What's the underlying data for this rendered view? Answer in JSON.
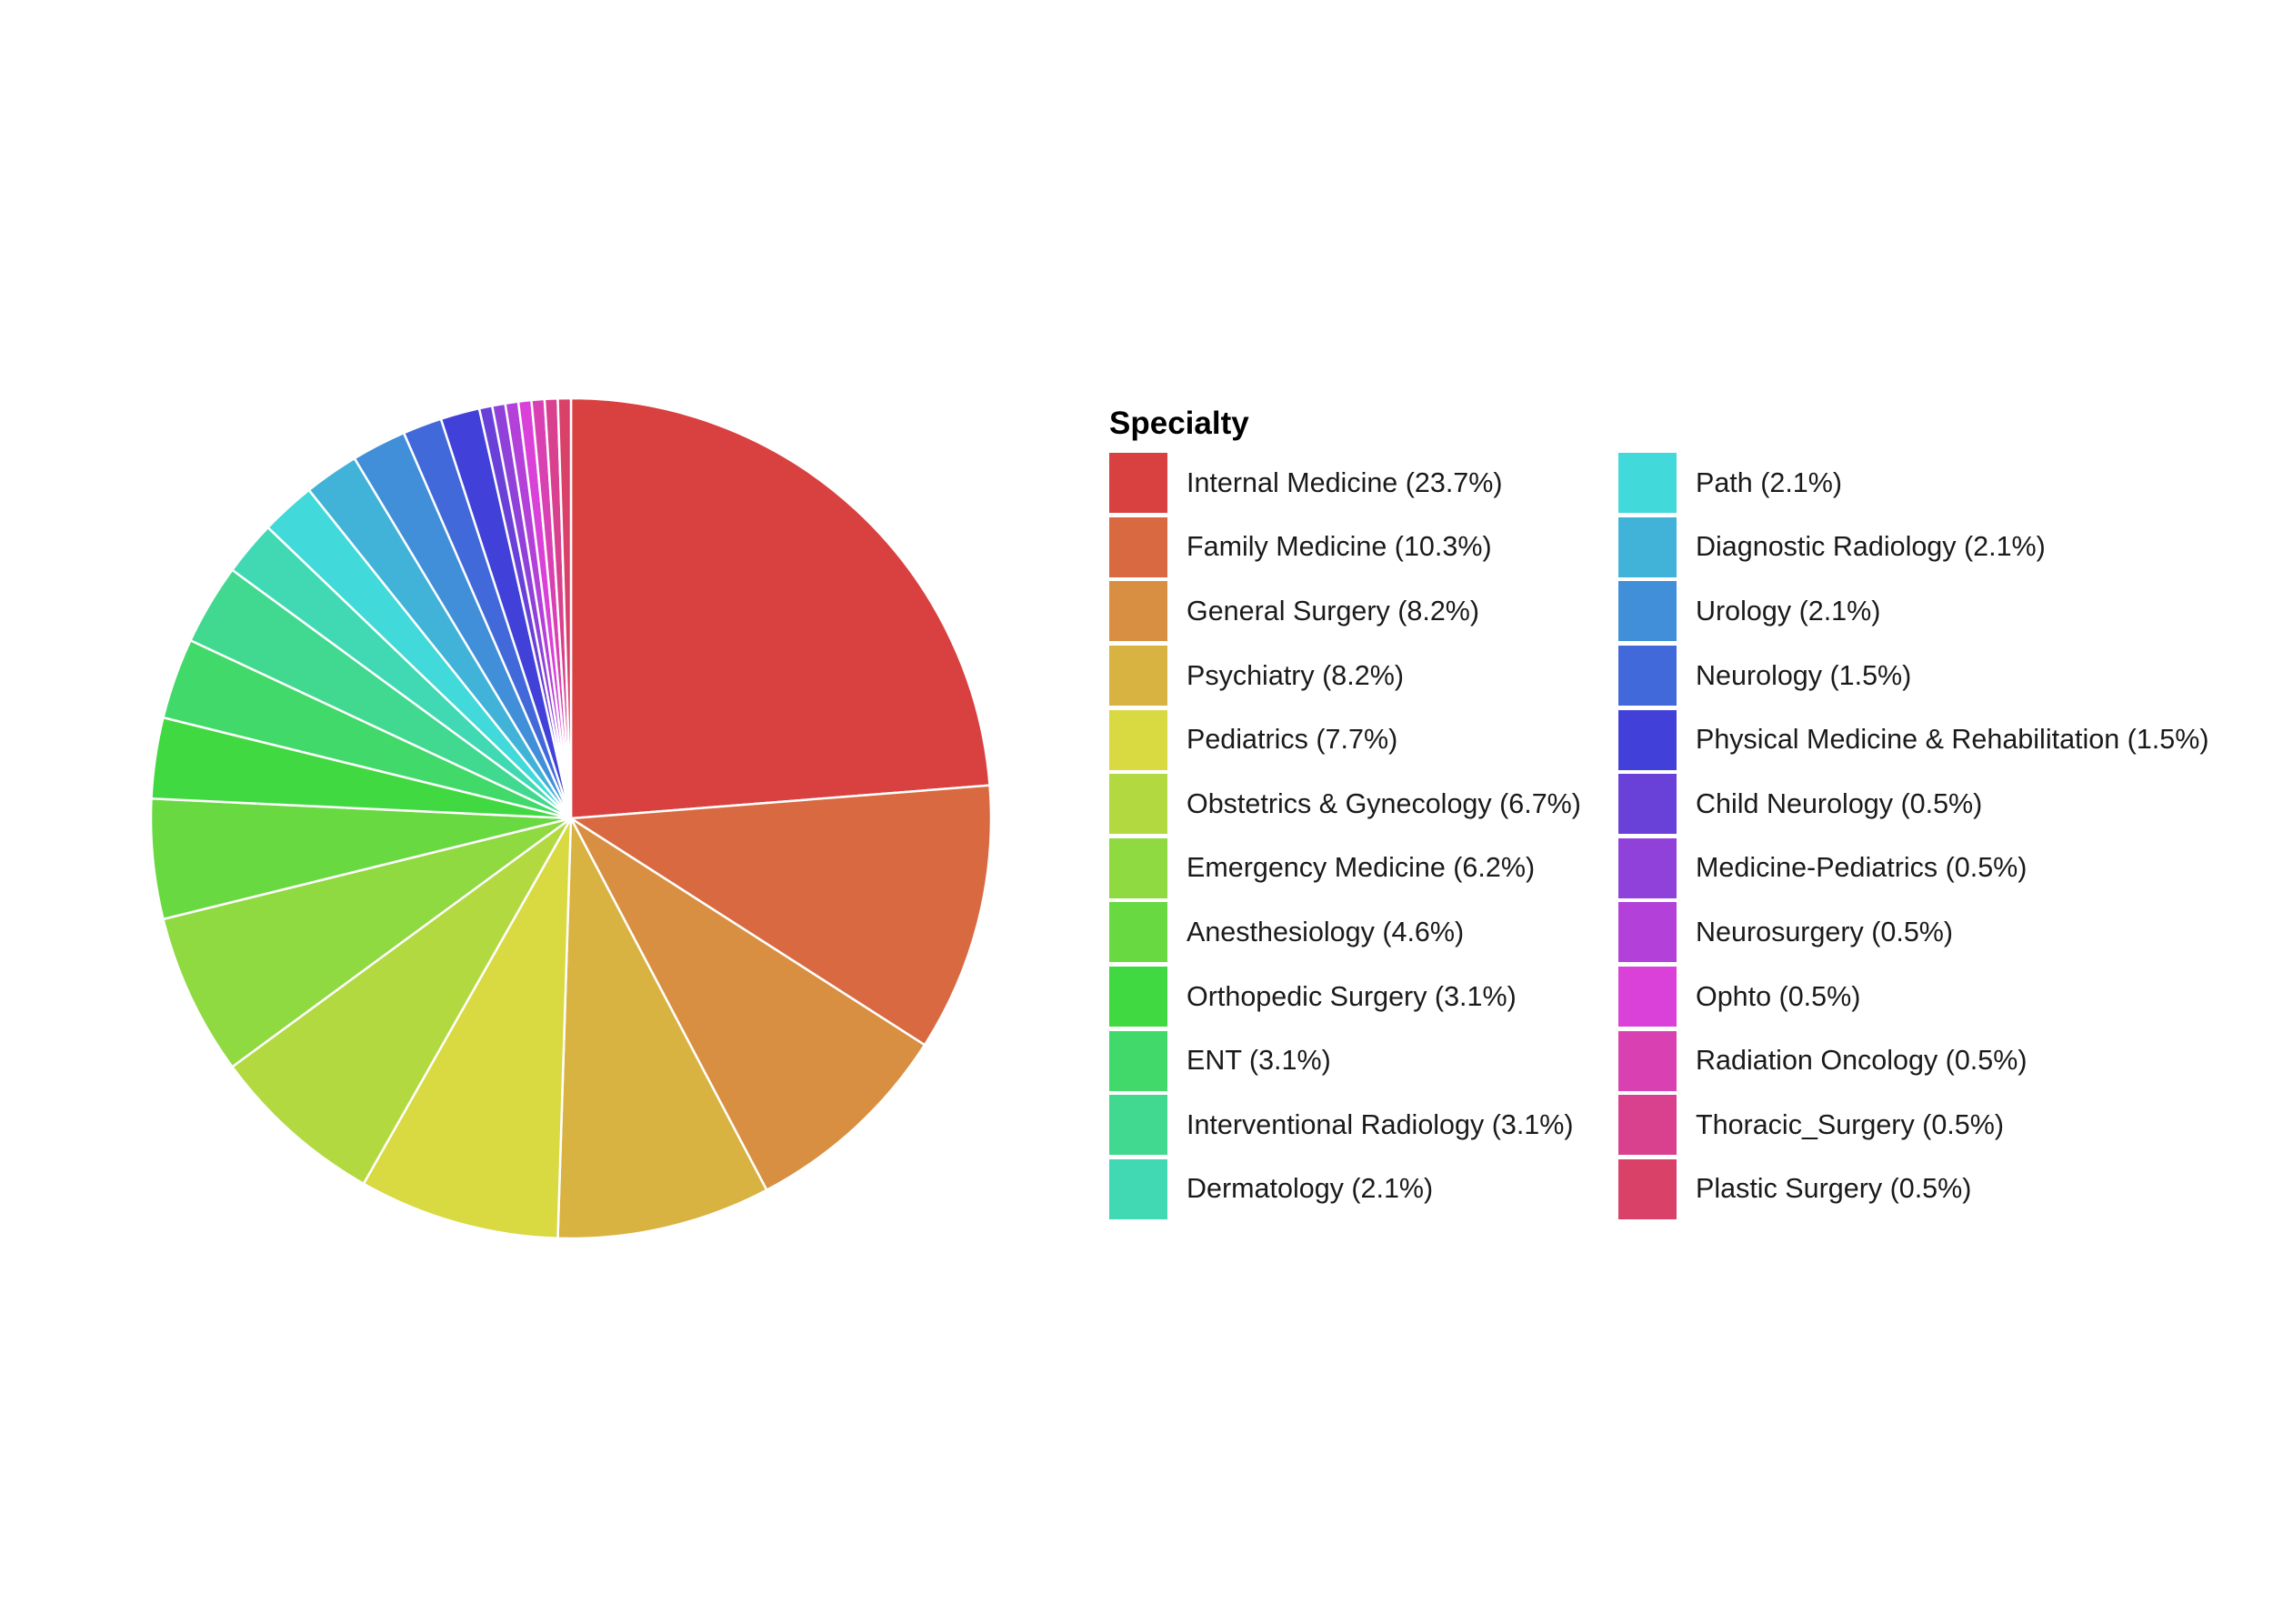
{
  "chart_data": {
    "type": "pie",
    "legend": {
      "title": "Specialty",
      "placement": "right",
      "columns": 2
    },
    "slices": [
      {
        "label": "Internal Medicine (23.7%)",
        "value": 23.7,
        "color": "#D94141"
      },
      {
        "label": "Family Medicine (10.3%)",
        "value": 10.3,
        "color": "#D96941"
      },
      {
        "label": "General Surgery (8.2%)",
        "value": 8.2,
        "color": "#D98F41"
      },
      {
        "label": "Psychiatry (8.2%)",
        "value": 8.2,
        "color": "#D9B341"
      },
      {
        "label": "Pediatrics (7.7%)",
        "value": 7.7,
        "color": "#D9D941"
      },
      {
        "label": "Obstetrics & Gynecology (6.7%)",
        "value": 6.7,
        "color": "#B3D941"
      },
      {
        "label": "Emergency Medicine (6.2%)",
        "value": 6.2,
        "color": "#8FD941"
      },
      {
        "label": "Anesthesiology (4.6%)",
        "value": 4.6,
        "color": "#69D941"
      },
      {
        "label": "Orthopedic Surgery (3.1%)",
        "value": 3.1,
        "color": "#41D941"
      },
      {
        "label": "ENT (3.1%)",
        "value": 3.1,
        "color": "#41D969"
      },
      {
        "label": "Interventional Radiology (3.1%)",
        "value": 3.1,
        "color": "#41D98F"
      },
      {
        "label": "Dermatology (2.1%)",
        "value": 2.1,
        "color": "#41D9B3"
      },
      {
        "label": "Path (2.1%)",
        "value": 2.1,
        "color": "#41D9D9"
      },
      {
        "label": "Diagnostic Radiology (2.1%)",
        "value": 2.1,
        "color": "#41B3D9"
      },
      {
        "label": "Urology (2.1%)",
        "value": 2.1,
        "color": "#418FD9"
      },
      {
        "label": "Neurology (1.5%)",
        "value": 1.5,
        "color": "#4169D9"
      },
      {
        "label": "Physical Medicine & Rehabilitation (1.5%)",
        "value": 1.5,
        "color": "#4141D9"
      },
      {
        "label": "Child Neurology (0.5%)",
        "value": 0.5,
        "color": "#6941D9"
      },
      {
        "label": "Medicine-Pediatrics (0.5%)",
        "value": 0.5,
        "color": "#8F41D9"
      },
      {
        "label": "Neurosurgery (0.5%)",
        "value": 0.5,
        "color": "#B341D9"
      },
      {
        "label": "Ophto (0.5%)",
        "value": 0.5,
        "color": "#D941D9"
      },
      {
        "label": "Radiation Oncology (0.5%)",
        "value": 0.5,
        "color": "#D941B3"
      },
      {
        "label": "Thoracic_Surgery (0.5%)",
        "value": 0.5,
        "color": "#D9418F"
      },
      {
        "label": "Plastic Surgery (0.5%)",
        "value": 0.5,
        "color": "#D94169"
      }
    ]
  }
}
